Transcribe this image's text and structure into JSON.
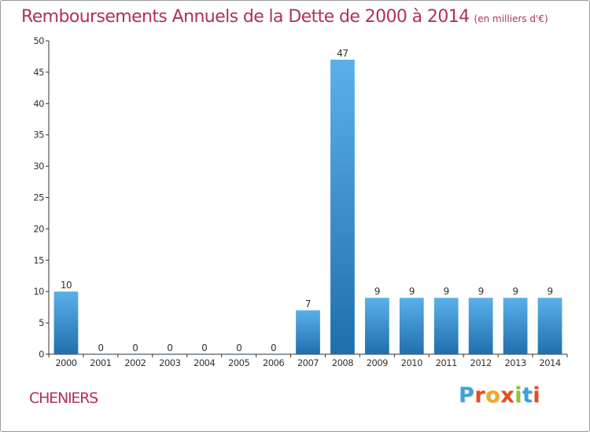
{
  "header": {
    "title": "Remboursements Annuels de la Dette de 2000 à 2014",
    "subtitle": "(en milliers d'€)"
  },
  "footer": {
    "commune": "CHENIERS",
    "brand": "Proxiti",
    "brand_colors": [
      "#3aa3dc",
      "#e94c22",
      "#f4a81d",
      "#e94c22",
      "#8cc63e",
      "#3aa3dc",
      "#e94c22"
    ]
  },
  "colors": {
    "title": "#b0305e",
    "bar_top": "#5bb0ea",
    "bar_bottom": "#1f6fad",
    "axis": "#333333"
  },
  "chart_data": {
    "type": "bar",
    "title": "Remboursements Annuels de la Dette de 2000 à 2014",
    "subtitle": "(en milliers d'€)",
    "categories": [
      "2000",
      "2001",
      "2002",
      "2003",
      "2004",
      "2005",
      "2006",
      "2007",
      "2008",
      "2009",
      "2010",
      "2011",
      "2012",
      "2013",
      "2014"
    ],
    "values": [
      10,
      0,
      0,
      0,
      0,
      0,
      0,
      7,
      47,
      9,
      9,
      9,
      9,
      9,
      9
    ],
    "xlabel": "",
    "ylabel": "",
    "ylim": [
      0,
      50
    ],
    "yticks": [
      0,
      5,
      10,
      15,
      20,
      25,
      30,
      35,
      40,
      45,
      50
    ],
    "grid": false,
    "legend": "none",
    "data_labels": true
  }
}
